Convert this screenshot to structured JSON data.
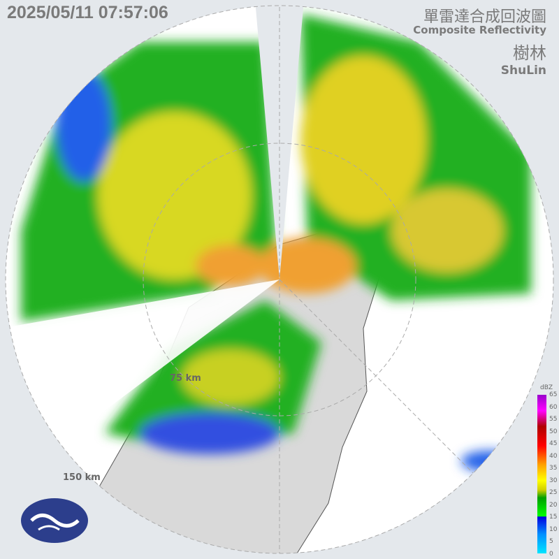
{
  "timestamp": "2025/05/11 07:57:06",
  "title_zh": "單雷達合成回波圖",
  "title_en": "Composite Reflectivity",
  "station_zh": "樹林",
  "station_en": "ShuLin",
  "range_rings": [
    "75 km",
    "150 km"
  ],
  "colorbar": {
    "unit": "dBZ",
    "ticks": [
      "65",
      "60",
      "55",
      "50",
      "45",
      "40",
      "35",
      "30",
      "25",
      "20",
      "15",
      "10",
      "5",
      "0"
    ]
  },
  "logo": "cwa-logo"
}
